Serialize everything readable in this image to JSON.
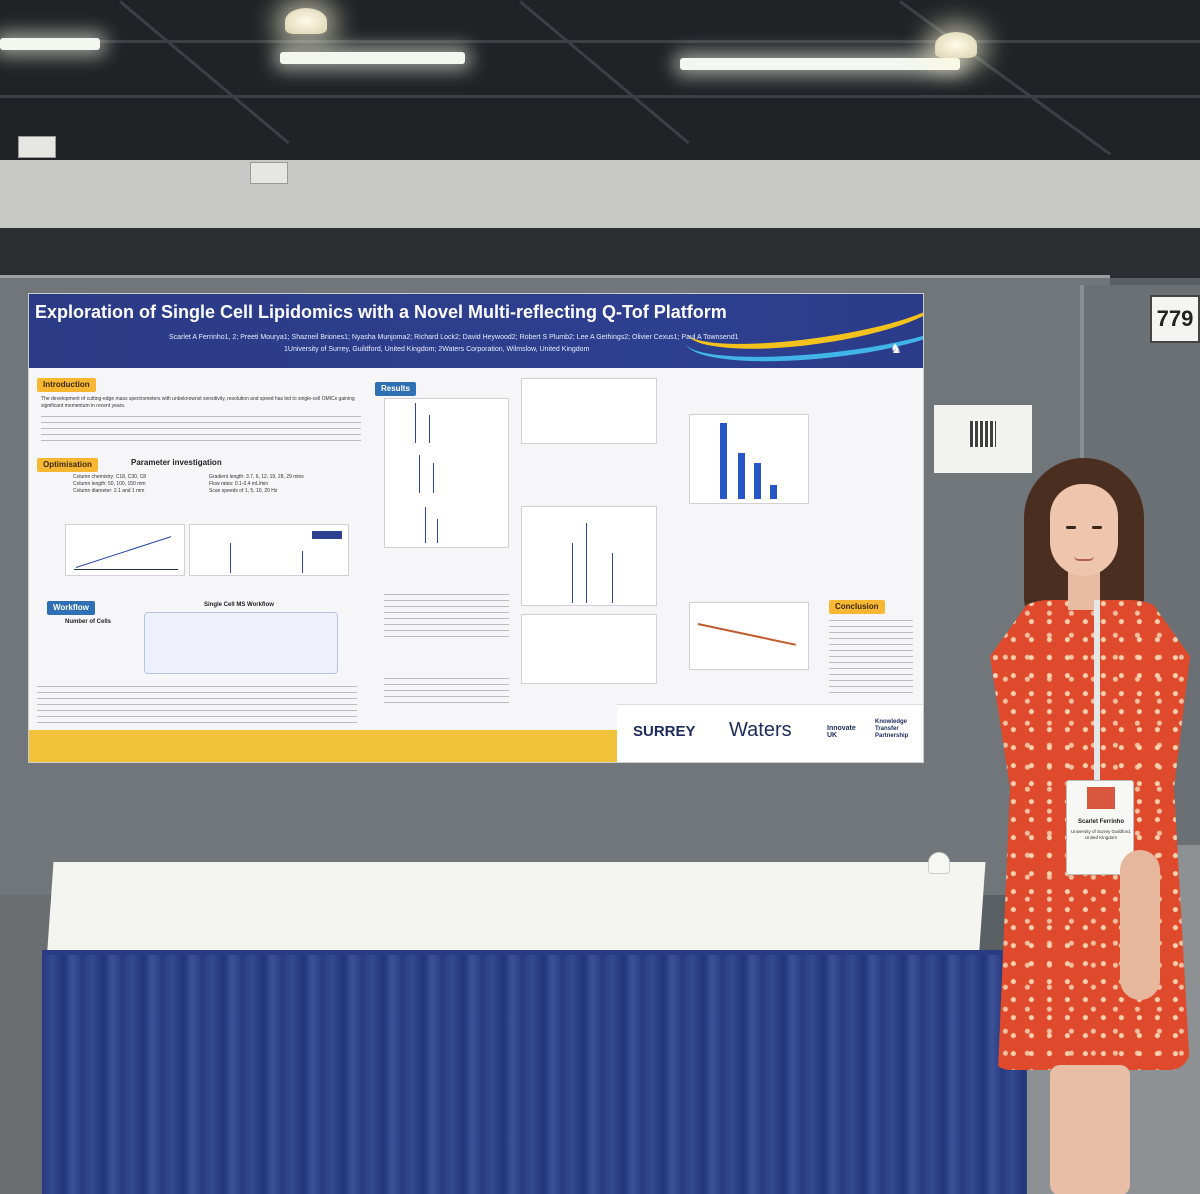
{
  "booth": {
    "number": "779"
  },
  "poster": {
    "title": "Exploration of Single Cell Lipidomics with a Novel Multi-reflecting Q-Tof Platform",
    "authors": "Scarlet A Ferrinho1, 2; Preeti Mourya1; Shazneil Briones1; Nyasha Munjoma2; Richard Lock2; David Heywood2; Robert S Plumb2; Lee A Gethings2; Olivier Cexus1; Paul A Townsend1",
    "affiliations": "1University of Surrey, Guildford, United Kingdom; 2Waters Corporation, Wilmslow, United Kingdom",
    "sections": {
      "introduction": "Introduction",
      "optimisation": "Optimisation",
      "parameter_investigation": "Parameter investigation",
      "workflow": "Workflow",
      "results": "Results",
      "conclusion": "Conclusion"
    },
    "workflow_title": "Single Cell MS Workflow",
    "pyramid_label": "Number of Cells",
    "intro_text": "The development of cutting-edge mass spectrometers with unbeknownst sensitivity, resolution and speed has led to single-cell OMICs gaining significant momentum in recent years.",
    "params_left": [
      "Column chemistry: C18, C30, C8",
      "Column length: 50, 100, 150 mm",
      "Column diameter: 2.1 and 1 mm"
    ],
    "params_right": [
      "Gradient length: 3.7, 6, 12, 19, 28, 29 mins",
      "Flow rates: 0.1-0.4 mL/min",
      "Scan speeds of 1, 5, 10, 20 Hz"
    ],
    "logos": {
      "surrey": "SURREY",
      "waters": "Waters",
      "innovate": "Innovate UK",
      "ktp": "Knowledge Transfer Partnership"
    }
  },
  "badge": {
    "name": "Scarlet Ferrinho",
    "org": "University of Surrey Guildford, United Kingdom"
  },
  "colors": {
    "poster_header": "#2c3b86",
    "section_gold": "#f7b733",
    "section_blue": "#2f6fb4",
    "dress": "#df4a2c",
    "table_skirt": "#293b80"
  }
}
